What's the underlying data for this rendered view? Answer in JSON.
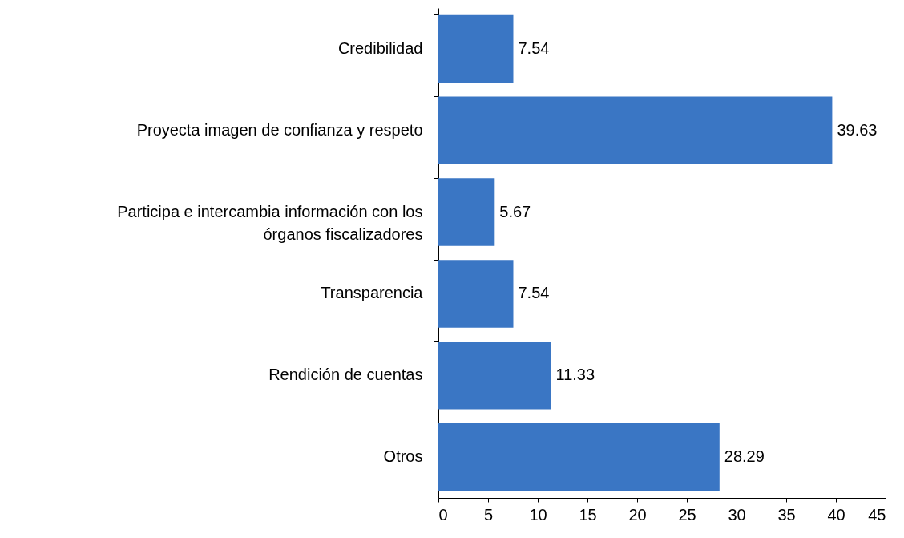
{
  "chart_data": {
    "type": "bar",
    "orientation": "horizontal",
    "categories": [
      "Credibilidad",
      "Proyecta imagen de confianza y respeto",
      "Participa e intercambia información con los órganos fiscalizadores",
      "Transparencia",
      "Rendición de cuentas",
      "Otros"
    ],
    "values": [
      7.54,
      39.63,
      5.67,
      7.54,
      11.33,
      28.29
    ],
    "color": "#3a76c4",
    "xlim": [
      0,
      45
    ],
    "xticks": [
      0,
      5,
      10,
      15,
      20,
      25,
      30,
      35,
      40,
      45
    ],
    "grid": false,
    "data_labels": true
  }
}
